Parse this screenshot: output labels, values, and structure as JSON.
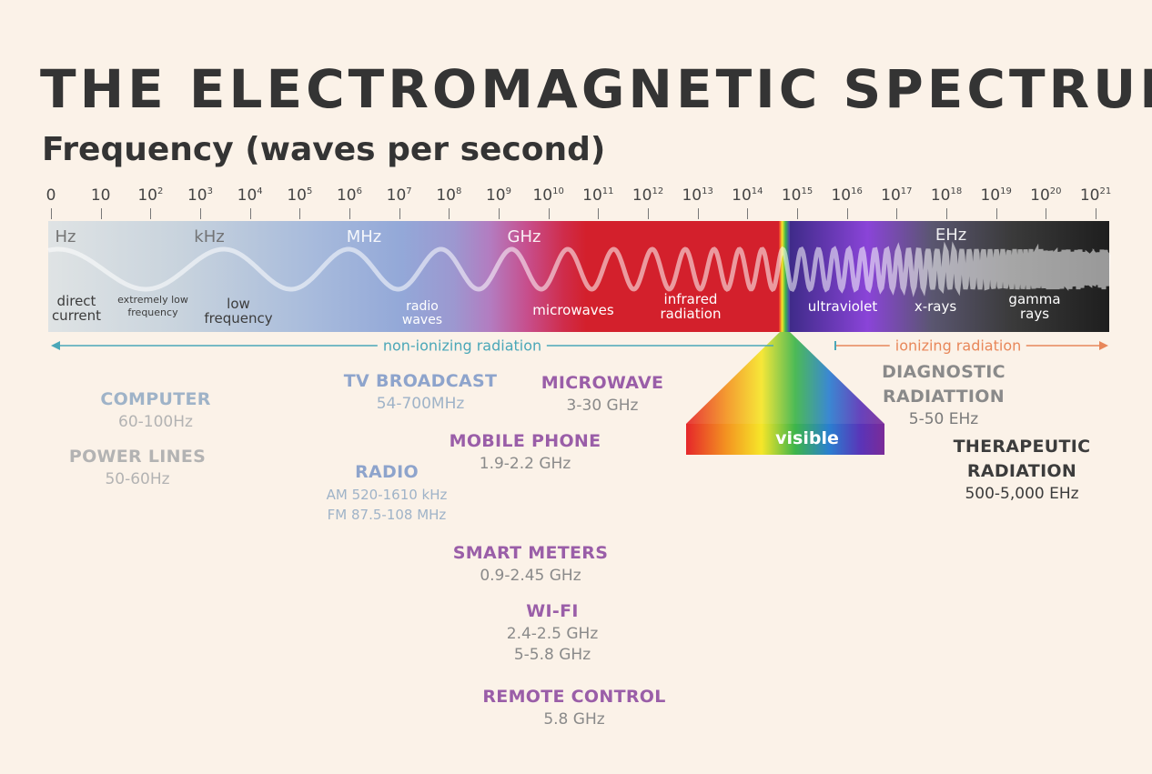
{
  "title": "THE ELECTROMAGNETIC SPECTRUM",
  "subtitle": "Frequency (waves per second)",
  "axis": {
    "ticks": [
      {
        "base": "0",
        "exp": ""
      },
      {
        "base": "10",
        "exp": ""
      },
      {
        "base": "10",
        "exp": "2"
      },
      {
        "base": "10",
        "exp": "3"
      },
      {
        "base": "10",
        "exp": "4"
      },
      {
        "base": "10",
        "exp": "5"
      },
      {
        "base": "10",
        "exp": "6"
      },
      {
        "base": "10",
        "exp": "7"
      },
      {
        "base": "10",
        "exp": "8"
      },
      {
        "base": "10",
        "exp": "9"
      },
      {
        "base": "10",
        "exp": "10"
      },
      {
        "base": "10",
        "exp": "11"
      },
      {
        "base": "10",
        "exp": "12"
      },
      {
        "base": "10",
        "exp": "13"
      },
      {
        "base": "10",
        "exp": "14"
      },
      {
        "base": "10",
        "exp": "15"
      },
      {
        "base": "10",
        "exp": "16"
      },
      {
        "base": "10",
        "exp": "17"
      },
      {
        "base": "10",
        "exp": "18"
      },
      {
        "base": "10",
        "exp": "19"
      },
      {
        "base": "10",
        "exp": "20"
      },
      {
        "base": "10",
        "exp": "21"
      }
    ]
  },
  "units": {
    "hz": "Hz",
    "khz": "kHz",
    "mhz": "MHz",
    "ghz": "GHz",
    "ehz": "EHz"
  },
  "bands": {
    "direct_current": [
      "direct",
      "current"
    ],
    "extremely_low": [
      "extremely low",
      "frequency"
    ],
    "low_frequency": [
      "low",
      "frequency"
    ],
    "radio_waves": [
      "radio",
      "waves"
    ],
    "microwaves": "microwaves",
    "infrared": [
      "infrared",
      "radiation"
    ],
    "ultraviolet": "ultraviolet",
    "xrays": "x-rays",
    "gamma": [
      "gamma",
      "rays"
    ],
    "visible": "visible"
  },
  "radiation": {
    "non_ionizing": "non-ionizing radiation",
    "ionizing": "ionizing radiation"
  },
  "colors": {
    "non_ionizing": "#4aa7b8",
    "ionizing": "#e8875a",
    "light_blue_label": "#9fb3c8",
    "grey_label": "#b3b3b3",
    "purple_label": "#9a5ea8",
    "dark_grey_label": "#7a7a7a"
  },
  "applications": {
    "computer": {
      "name": "COMPUTER",
      "values": [
        "60-100Hz"
      ]
    },
    "power_lines": {
      "name": "POWER LINES",
      "values": [
        "50-60Hz"
      ]
    },
    "tv_broadcast": {
      "name": "TV BROADCAST",
      "values": [
        "54-700MHz"
      ]
    },
    "radio": {
      "name": "RADIO",
      "values": [
        "AM 520-1610 kHz",
        "FM 87.5-108 MHz"
      ]
    },
    "microwave": {
      "name": "MICROWAVE",
      "values": [
        "3-30 GHz"
      ]
    },
    "mobile_phone": {
      "name": "MOBILE PHONE",
      "values": [
        "1.9-2.2 GHz"
      ]
    },
    "smart_meters": {
      "name": "SMART METERS",
      "values": [
        "0.9-2.45 GHz"
      ]
    },
    "wifi": {
      "name": "WI-FI",
      "values": [
        "2.4-2.5 GHz",
        "5-5.8 GHz"
      ]
    },
    "remote_control": {
      "name": "REMOTE CONTROL",
      "values": [
        "5.8 GHz"
      ]
    },
    "diagnostic": {
      "name_lines": [
        "DIAGNOSTIC",
        "RADIATTION"
      ],
      "values": [
        "5-50 EHz"
      ]
    },
    "therapeutic": {
      "name_lines": [
        "THERAPEUTIC",
        "RADIATION"
      ],
      "values": [
        "500-5,000 EHz"
      ]
    }
  }
}
